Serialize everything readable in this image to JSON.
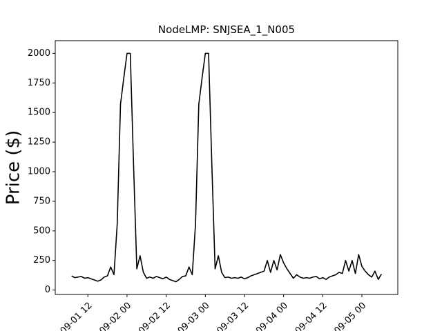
{
  "chart_data": {
    "type": "line",
    "title": "NodeLMP: SNJSEA_1_N005",
    "y_label": "Price ($)",
    "color": "#000000",
    "x": [
      "09-01 07",
      "09-01 08",
      "09-01 09",
      "09-01 10",
      "09-01 11",
      "09-01 12",
      "09-01 13",
      "09-01 14",
      "09-01 15",
      "09-01 16",
      "09-01 17",
      "09-01 18",
      "09-01 19",
      "09-01 20",
      "09-01 21",
      "09-01 22",
      "09-01 23",
      "09-02 00",
      "09-02 01",
      "09-02 02",
      "09-02 03",
      "09-02 04",
      "09-02 05",
      "09-02 06",
      "09-02 07",
      "09-02 08",
      "09-02 09",
      "09-02 10",
      "09-02 11",
      "09-02 12",
      "09-02 13",
      "09-02 14",
      "09-02 15",
      "09-02 16",
      "09-02 17",
      "09-02 18",
      "09-02 19",
      "09-02 20",
      "09-02 21",
      "09-02 22",
      "09-02 23",
      "09-03 00",
      "09-03 01",
      "09-03 02",
      "09-03 03",
      "09-03 04",
      "09-03 05",
      "09-03 06",
      "09-03 07",
      "09-03 08",
      "09-03 09",
      "09-03 10",
      "09-03 11",
      "09-03 12",
      "09-03 13",
      "09-03 14",
      "09-03 15",
      "09-03 16",
      "09-03 17",
      "09-03 18",
      "09-03 19",
      "09-03 20",
      "09-03 21",
      "09-03 22",
      "09-03 23",
      "09-04 00",
      "09-04 01",
      "09-04 02",
      "09-04 03",
      "09-04 04",
      "09-04 05",
      "09-04 06",
      "09-04 07",
      "09-04 08",
      "09-04 09",
      "09-04 10",
      "09-04 11",
      "09-04 12",
      "09-04 13",
      "09-04 14",
      "09-04 15",
      "09-04 16",
      "09-04 17",
      "09-04 18",
      "09-04 19",
      "09-04 20",
      "09-04 21",
      "09-04 22",
      "09-04 23",
      "09-05 00",
      "09-05 01",
      "09-05 02",
      "09-05 03",
      "09-05 04",
      "09-05 05",
      "09-05 06"
    ],
    "values": [
      120,
      105,
      110,
      115,
      100,
      105,
      95,
      85,
      75,
      85,
      110,
      120,
      195,
      130,
      560,
      1570,
      1790,
      2000,
      2000,
      1060,
      180,
      290,
      150,
      100,
      110,
      100,
      115,
      105,
      95,
      110,
      90,
      80,
      70,
      90,
      115,
      120,
      195,
      130,
      560,
      1570,
      1790,
      2000,
      2000,
      1060,
      180,
      290,
      150,
      105,
      110,
      100,
      105,
      100,
      110,
      95,
      105,
      120,
      130,
      140,
      150,
      160,
      250,
      150,
      250,
      170,
      300,
      230,
      180,
      140,
      100,
      130,
      110,
      100,
      105,
      100,
      110,
      115,
      95,
      105,
      90,
      110,
      120,
      130,
      150,
      140,
      250,
      160,
      250,
      140,
      300,
      200,
      160,
      130,
      110,
      160,
      90,
      135
    ],
    "xlim": [
      "09-01 02",
      "09-05 11"
    ],
    "xticks": [
      "09-01 12",
      "09-02 00",
      "09-02 12",
      "09-03 00",
      "09-03 12",
      "09-04 00",
      "09-04 12",
      "09-05 00"
    ],
    "ylim": [
      -37,
      2107
    ],
    "yticks": [
      0,
      250,
      500,
      750,
      1000,
      1250,
      1500,
      1750,
      2000
    ]
  }
}
